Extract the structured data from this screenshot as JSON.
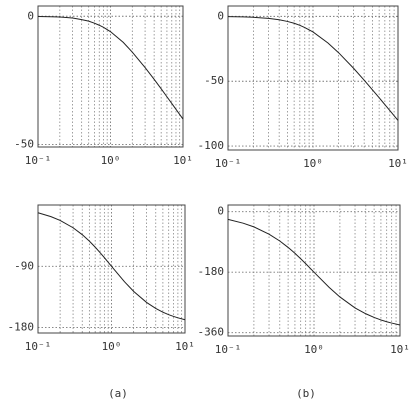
{
  "chart_data": [
    {
      "type": "line",
      "log_x": true,
      "grid": true,
      "color": "#222222",
      "x": [
        0.1,
        0.15,
        0.2,
        0.3,
        0.4,
        0.5,
        0.6,
        0.7,
        0.8,
        1,
        1.5,
        2,
        3,
        4,
        5,
        6,
        7,
        8,
        10
      ],
      "series": [
        {
          "values": [
            -0.1,
            -0.2,
            -0.3,
            -0.7,
            -1.3,
            -1.9,
            -2.7,
            -3.5,
            -4.3,
            -6.0,
            -10.2,
            -14.0,
            -20.0,
            -24.6,
            -28.3,
            -31.4,
            -34.0,
            -36.3,
            -40.1
          ]
        }
      ],
      "xlim": [
        0.1,
        10
      ],
      "xticks": [
        {
          "value": 0.1,
          "label": "10⁻¹"
        },
        {
          "value": 1,
          "label": "10⁰"
        },
        {
          "value": 10,
          "label": "10¹"
        }
      ],
      "ylim": [
        -51,
        4
      ],
      "yticks": [
        0,
        -50
      ]
    },
    {
      "type": "line",
      "log_x": true,
      "grid": true,
      "color": "#222222",
      "x": [
        0.1,
        0.15,
        0.2,
        0.3,
        0.4,
        0.5,
        0.6,
        0.7,
        0.8,
        1,
        1.5,
        2,
        3,
        4,
        5,
        6,
        7,
        8,
        10
      ],
      "series": [
        {
          "values": [
            -0.2,
            -0.4,
            -0.7,
            -1.5,
            -2.6,
            -3.9,
            -5.3,
            -6.9,
            -8.6,
            -12.0,
            -20.5,
            -28.0,
            -40.0,
            -49.2,
            -56.6,
            -62.7,
            -68.0,
            -72.5,
            -80.2
          ]
        }
      ],
      "xlim": [
        0.1,
        10
      ],
      "xticks": [
        {
          "value": 0.1,
          "label": "10⁻¹"
        },
        {
          "value": 1,
          "label": "10⁰"
        },
        {
          "value": 10,
          "label": "10¹"
        }
      ],
      "ylim": [
        -103,
        8
      ],
      "yticks": [
        0,
        -50,
        -100
      ]
    },
    {
      "type": "line",
      "log_x": true,
      "grid": true,
      "color": "#222222",
      "x": [
        0.1,
        0.15,
        0.2,
        0.3,
        0.4,
        0.5,
        0.6,
        0.7,
        0.8,
        1,
        1.5,
        2,
        3,
        4,
        5,
        6,
        7,
        8,
        10
      ],
      "series": [
        {
          "values": [
            -11.4,
            -17.1,
            -22.6,
            -33.4,
            -43.6,
            -53.1,
            -61.9,
            -70.0,
            -77.3,
            -90,
            -112.6,
            -126.9,
            -143.1,
            -151.9,
            -157.4,
            -161.1,
            -163.7,
            -165.7,
            -168.6
          ]
        }
      ],
      "xlim": [
        0.1,
        10
      ],
      "xticks": [
        {
          "value": 0.1,
          "label": "10⁻¹"
        },
        {
          "value": 1,
          "label": "10⁰"
        },
        {
          "value": 10,
          "label": "10¹"
        }
      ],
      "ylim": [
        -188,
        0
      ],
      "yticks": [
        -90,
        -180
      ]
    },
    {
      "type": "line",
      "log_x": true,
      "grid": true,
      "color": "#222222",
      "x": [
        0.1,
        0.15,
        0.2,
        0.3,
        0.4,
        0.5,
        0.6,
        0.7,
        0.8,
        1,
        1.5,
        2,
        3,
        4,
        5,
        6,
        7,
        8,
        10
      ],
      "series": [
        {
          "values": [
            -22.8,
            -34.1,
            -45.2,
            -66.8,
            -87.2,
            -106.3,
            -123.8,
            -140.0,
            -154.6,
            -180,
            -225.2,
            -253.7,
            -286.3,
            -303.8,
            -314.8,
            -322.2,
            -327.5,
            -331.5,
            -337.2
          ]
        }
      ],
      "xlim": [
        0.1,
        10
      ],
      "xticks": [
        {
          "value": 0.1,
          "label": "10⁻¹"
        },
        {
          "value": 1,
          "label": "10⁰"
        },
        {
          "value": 10,
          "label": "10¹"
        }
      ],
      "ylim": [
        -370,
        20
      ],
      "yticks": [
        0,
        -180,
        -360
      ]
    }
  ],
  "captions": [
    "(a)",
    "(b)"
  ]
}
